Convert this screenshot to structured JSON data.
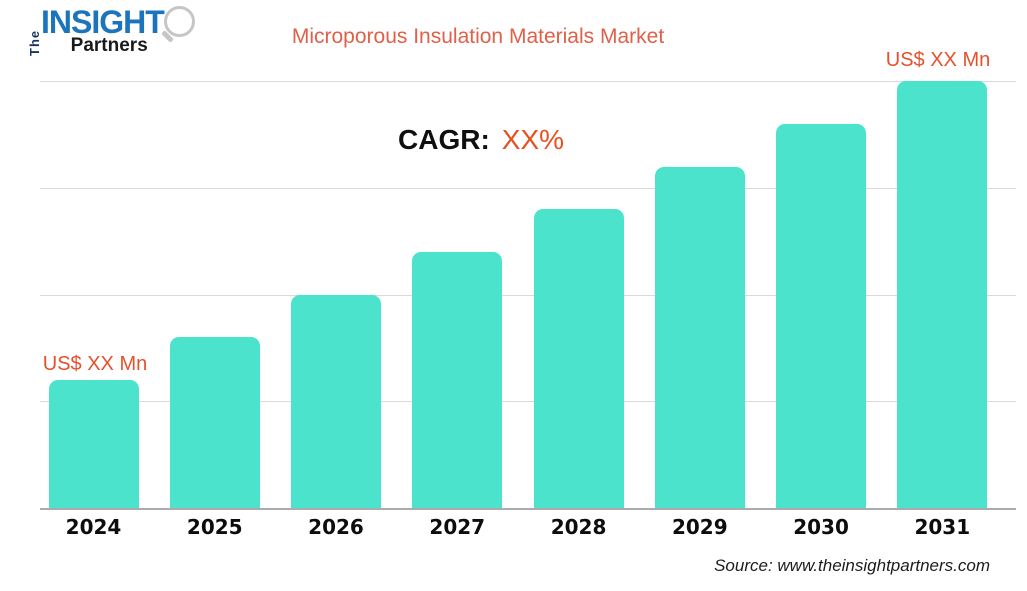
{
  "logo": {
    "the": "The",
    "insight": "INSIGHT",
    "partners": "Partners"
  },
  "title": "Microporous Insulation Materials Market",
  "cagr": {
    "label": "CAGR:",
    "value": "XX%"
  },
  "source": "Source: www.theinsightpartners.com",
  "colors": {
    "bar": "#4be3cc",
    "title": "#e0604a",
    "cagr_value_orange": "#e8511f",
    "value_label_orange": "#e5512c",
    "logo_blue": "#1c75bc",
    "logo_navy": "#16355e",
    "text_black": "#0f0f0f",
    "gridline": "#d9d9d9",
    "axis": "#ababab"
  },
  "chart_data": {
    "type": "bar",
    "title": "Microporous Insulation Materials Market",
    "categories": [
      "2024",
      "2025",
      "2026",
      "2027",
      "2028",
      "2029",
      "2030",
      "2031"
    ],
    "values_relative_pct": [
      30,
      40,
      50,
      60,
      70,
      80,
      90,
      100
    ],
    "unit": "US$ Mn",
    "values_masked": true,
    "value_labels": {
      "first": "US$ XX Mn",
      "last": "US$ XX Mn"
    },
    "annotation": {
      "label": "CAGR:",
      "value": "XX%"
    },
    "xlabel": "",
    "ylabel": "",
    "legend": "none",
    "gridlines": {
      "horizontal_count": 4,
      "visible": true
    },
    "bar_color": "#4be3cc"
  }
}
